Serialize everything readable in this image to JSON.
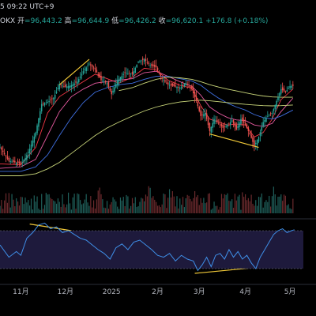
{
  "header": {
    "line1": "5 09:22 UTC+9",
    "pair_suffix": "OKX",
    "open_label": "开",
    "open_value": "=96,443.2",
    "high_label": "高",
    "high_value": "=96,644.9",
    "low_label": "低",
    "low_value": "=96,426.2",
    "close_label": "收",
    "close_value": "=96,620.1",
    "change": "+176.8 (+0.18%)"
  },
  "colors": {
    "background": "#000000",
    "up": "#26a69a",
    "down": "#ef5350",
    "ma_fast": "#f23645",
    "ma_mid": "#e65aa0",
    "ma_slow": "#3f6fe0",
    "ma_long": "#c9d67a",
    "trend": "#f0c838",
    "osc_line": "#3f8fe8",
    "osc_band": "#1e1a3c"
  },
  "chart_data": {
    "type": "candlestick",
    "x_labels": [
      "11月",
      "12月",
      "2025",
      "2月",
      "3月",
      "4月",
      "5月"
    ],
    "x_label_positions_days": [
      0,
      30,
      61,
      92,
      120,
      151,
      181
    ],
    "x_range_days": [
      -14,
      190
    ],
    "price_path": [
      [
        -14,
        76000
      ],
      [
        -8,
        71500
      ],
      [
        0,
        70500
      ],
      [
        3,
        72500
      ],
      [
        6,
        75500
      ],
      [
        10,
        81000
      ],
      [
        14,
        90500
      ],
      [
        18,
        91200
      ],
      [
        22,
        92500
      ],
      [
        26,
        97000
      ],
      [
        30,
        96300
      ],
      [
        34,
        96800
      ],
      [
        38,
        98000
      ],
      [
        42,
        101500
      ],
      [
        46,
        104000
      ],
      [
        50,
        102000
      ],
      [
        54,
        98500
      ],
      [
        58,
        97500
      ],
      [
        61,
        93800
      ],
      [
        65,
        98500
      ],
      [
        70,
        101000
      ],
      [
        75,
        100500
      ],
      [
        79,
        104700
      ],
      [
        83,
        105500
      ],
      [
        87,
        103500
      ],
      [
        91,
        102800
      ],
      [
        95,
        99000
      ],
      [
        99,
        97000
      ],
      [
        103,
        96500
      ],
      [
        107,
        96000
      ],
      [
        111,
        97500
      ],
      [
        115,
        95500
      ],
      [
        118,
        91500
      ],
      [
        121,
        86500
      ],
      [
        124,
        87500
      ],
      [
        127,
        81500
      ],
      [
        130,
        85500
      ],
      [
        133,
        84000
      ],
      [
        136,
        82500
      ],
      [
        139,
        83500
      ],
      [
        142,
        85000
      ],
      [
        145,
        82000
      ],
      [
        148,
        85500
      ],
      [
        151,
        83500
      ],
      [
        154,
        80500
      ],
      [
        157,
        76500
      ],
      [
        160,
        79500
      ],
      [
        163,
        84500
      ],
      [
        166,
        86500
      ],
      [
        169,
        87500
      ],
      [
        172,
        91500
      ],
      [
        175,
        95500
      ],
      [
        178,
        94500
      ],
      [
        181,
        96500
      ],
      [
        183,
        96620
      ]
    ],
    "ma_lines": [
      {
        "name": "ma_fast",
        "color": "#f23645",
        "points": [
          [
            -14,
            70500
          ],
          [
            0,
            70200
          ],
          [
            10,
            76000
          ],
          [
            18,
            87500
          ],
          [
            26,
            93000
          ],
          [
            34,
            95500
          ],
          [
            42,
            98000
          ],
          [
            50,
            100500
          ],
          [
            58,
            99000
          ],
          [
            66,
            97500
          ],
          [
            75,
            99500
          ],
          [
            83,
            102500
          ],
          [
            91,
            102000
          ],
          [
            99,
            98500
          ],
          [
            107,
            96800
          ],
          [
            115,
            95800
          ],
          [
            121,
            90000
          ],
          [
            127,
            85500
          ],
          [
            133,
            84500
          ],
          [
            139,
            83500
          ],
          [
            145,
            83800
          ],
          [
            151,
            83500
          ],
          [
            157,
            79500
          ],
          [
            163,
            81000
          ],
          [
            169,
            85500
          ],
          [
            175,
            92000
          ],
          [
            183,
            95500
          ]
        ]
      },
      {
        "name": "ma_mid",
        "color": "#e65aa0",
        "points": [
          [
            -14,
            69000
          ],
          [
            0,
            69500
          ],
          [
            10,
            72000
          ],
          [
            18,
            80000
          ],
          [
            26,
            88000
          ],
          [
            34,
            93000
          ],
          [
            42,
            95500
          ],
          [
            50,
            97500
          ],
          [
            58,
            98000
          ],
          [
            66,
            98500
          ],
          [
            75,
            99000
          ],
          [
            83,
            101000
          ],
          [
            91,
            101500
          ],
          [
            99,
            99800
          ],
          [
            107,
            98000
          ],
          [
            115,
            96500
          ],
          [
            121,
            93500
          ],
          [
            127,
            89500
          ],
          [
            133,
            87500
          ],
          [
            139,
            86000
          ],
          [
            145,
            85200
          ],
          [
            151,
            85000
          ],
          [
            157,
            83500
          ],
          [
            163,
            83000
          ],
          [
            169,
            84000
          ],
          [
            175,
            88000
          ],
          [
            183,
            92500
          ]
        ]
      },
      {
        "name": "ma_slow",
        "color": "#3f6fe0",
        "points": [
          [
            -14,
            68000
          ],
          [
            0,
            68000
          ],
          [
            10,
            69500
          ],
          [
            18,
            73500
          ],
          [
            26,
            80000
          ],
          [
            34,
            86000
          ],
          [
            42,
            91000
          ],
          [
            50,
            94500
          ],
          [
            58,
            96000
          ],
          [
            66,
            97000
          ],
          [
            75,
            97500
          ],
          [
            83,
            98800
          ],
          [
            91,
            99800
          ],
          [
            99,
            99800
          ],
          [
            107,
            99000
          ],
          [
            115,
            98200
          ],
          [
            121,
            96800
          ],
          [
            127,
            94500
          ],
          [
            133,
            92500
          ],
          [
            139,
            90800
          ],
          [
            145,
            89500
          ],
          [
            151,
            88500
          ],
          [
            157,
            87000
          ],
          [
            163,
            86000
          ],
          [
            169,
            85500
          ],
          [
            175,
            86500
          ],
          [
            183,
            88500
          ]
        ]
      },
      {
        "name": "ma_long",
        "color": "#c9d67a",
        "points": [
          [
            -14,
            66500
          ],
          [
            0,
            66500
          ],
          [
            10,
            67200
          ],
          [
            18,
            68800
          ],
          [
            26,
            71000
          ],
          [
            34,
            74000
          ],
          [
            42,
            77000
          ],
          [
            50,
            80000
          ],
          [
            58,
            82500
          ],
          [
            66,
            84500
          ],
          [
            75,
            86500
          ],
          [
            83,
            88200
          ],
          [
            91,
            89500
          ],
          [
            99,
            90500
          ],
          [
            107,
            91200
          ],
          [
            115,
            91600
          ],
          [
            121,
            91800
          ],
          [
            127,
            91600
          ],
          [
            133,
            91300
          ],
          [
            139,
            91000
          ],
          [
            145,
            90700
          ],
          [
            151,
            90400
          ],
          [
            157,
            90200
          ],
          [
            163,
            90000
          ],
          [
            169,
            89900
          ],
          [
            175,
            90000
          ],
          [
            183,
            90200
          ]
        ]
      },
      {
        "name": "ma_long_2",
        "color": "#c9d67a",
        "points": [
          [
            66,
            95000
          ],
          [
            75,
            96000
          ],
          [
            83,
            97500
          ],
          [
            91,
            98800
          ],
          [
            99,
            99500
          ],
          [
            107,
            99300
          ],
          [
            115,
            98800
          ],
          [
            121,
            98000
          ],
          [
            127,
            97000
          ],
          [
            133,
            96200
          ],
          [
            139,
            95500
          ],
          [
            145,
            94900
          ],
          [
            151,
            94300
          ],
          [
            157,
            93700
          ],
          [
            163,
            93200
          ],
          [
            169,
            92900
          ],
          [
            175,
            92800
          ],
          [
            183,
            92800
          ]
        ]
      }
    ],
    "trend_lines": [
      {
        "pane": "price",
        "points": [
          [
            26,
            97000
          ],
          [
            46,
            105500
          ]
        ]
      },
      {
        "pane": "price",
        "points": [
          [
            127,
            80500
          ],
          [
            160,
            76000
          ]
        ]
      },
      {
        "pane": "oscillator",
        "points": [
          [
            6,
            77
          ],
          [
            34,
            70
          ]
        ]
      },
      {
        "pane": "oscillator",
        "points": [
          [
            117,
            25
          ],
          [
            157,
            31
          ]
        ]
      }
    ],
    "oscillator": {
      "range": [
        20,
        80
      ],
      "band": [
        30,
        70
      ],
      "values": [
        [
          -14,
          55
        ],
        [
          -8,
          42
        ],
        [
          -3,
          48
        ],
        [
          0,
          44
        ],
        [
          4,
          62
        ],
        [
          8,
          68
        ],
        [
          12,
          76
        ],
        [
          16,
          78
        ],
        [
          20,
          72
        ],
        [
          24,
          74
        ],
        [
          28,
          68
        ],
        [
          32,
          70
        ],
        [
          36,
          66
        ],
        [
          40,
          62
        ],
        [
          44,
          60
        ],
        [
          48,
          55
        ],
        [
          52,
          50
        ],
        [
          56,
          46
        ],
        [
          60,
          40
        ],
        [
          64,
          52
        ],
        [
          68,
          56
        ],
        [
          72,
          50
        ],
        [
          76,
          58
        ],
        [
          80,
          60
        ],
        [
          84,
          55
        ],
        [
          88,
          50
        ],
        [
          92,
          44
        ],
        [
          96,
          42
        ],
        [
          100,
          46
        ],
        [
          104,
          38
        ],
        [
          108,
          44
        ],
        [
          112,
          40
        ],
        [
          116,
          38
        ],
        [
          119,
          28
        ],
        [
          122,
          34
        ],
        [
          125,
          42
        ],
        [
          128,
          32
        ],
        [
          131,
          44
        ],
        [
          134,
          46
        ],
        [
          137,
          40
        ],
        [
          140,
          50
        ],
        [
          143,
          42
        ],
        [
          146,
          48
        ],
        [
          149,
          40
        ],
        [
          152,
          44
        ],
        [
          155,
          36
        ],
        [
          158,
          30
        ],
        [
          161,
          42
        ],
        [
          164,
          50
        ],
        [
          167,
          58
        ],
        [
          170,
          66
        ],
        [
          173,
          70
        ],
        [
          176,
          72
        ],
        [
          179,
          68
        ],
        [
          182,
          70
        ],
        [
          184,
          71
        ]
      ]
    }
  }
}
